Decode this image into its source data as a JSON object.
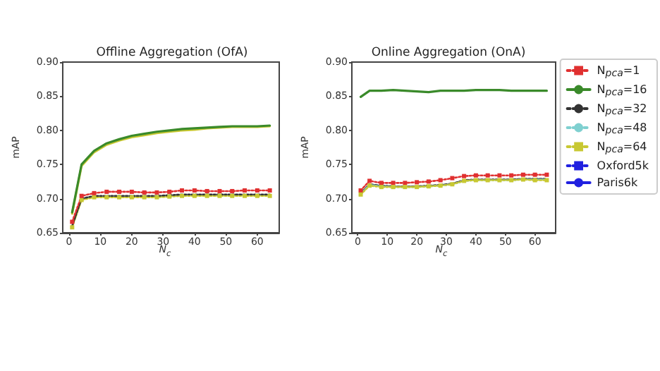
{
  "chart_data": [
    {
      "type": "line",
      "title": "Offline Aggregation (OfA)",
      "xlabel": "N$_{c}$",
      "ylabel": "mAP",
      "x": [
        1,
        4,
        8,
        12,
        16,
        20,
        24,
        28,
        32,
        36,
        40,
        44,
        48,
        52,
        56,
        60,
        64
      ],
      "xlim": [
        -2,
        67
      ],
      "xticks": [
        0,
        10,
        20,
        30,
        40,
        50,
        60
      ],
      "ylim": [
        0.65,
        0.9
      ],
      "yticks": [
        0.65,
        {
          "value": 0.7,
          "label": "0.70"
        },
        0.75,
        {
          "value": 0.8,
          "label": "0.80"
        },
        0.85,
        {
          "value": 0.9,
          "label": "0.90"
        }
      ],
      "grid": false,
      "legend": false,
      "series": [
        {
          "color": "#c8c832",
          "line_style": "solid",
          "marker": "none",
          "values": [
            0.678,
            0.748,
            0.768,
            0.779,
            0.785,
            0.79,
            0.793,
            0.796,
            0.798,
            0.8,
            0.801,
            0.803,
            0.804,
            0.805,
            0.805,
            0.805,
            0.806
          ]
        },
        {
          "color": "#3a8a2a",
          "line_style": "solid",
          "marker": "none",
          "values": [
            0.68,
            0.75,
            0.77,
            0.781,
            0.787,
            0.792,
            0.795,
            0.798,
            0.8,
            0.802,
            0.803,
            0.804,
            0.805,
            0.806,
            0.806,
            0.806,
            0.807
          ]
        },
        {
          "color": "#7fd0d0",
          "line_style": "dotted",
          "marker": "none",
          "values": [
            0.659,
            0.699,
            0.703,
            0.703,
            0.703,
            0.703,
            0.703,
            0.703,
            0.704,
            0.705,
            0.705,
            0.705,
            0.705,
            0.705,
            0.705,
            0.705,
            0.705
          ]
        },
        {
          "color": "#c8c832",
          "line_style": "dotted",
          "marker": "square",
          "values": [
            0.658,
            0.698,
            0.702,
            0.702,
            0.702,
            0.702,
            0.702,
            0.702,
            0.703,
            0.704,
            0.704,
            0.704,
            0.704,
            0.704,
            0.704,
            0.704,
            0.704
          ]
        },
        {
          "color": "#333333",
          "line_style": "dotted",
          "marker": "none",
          "values": [
            0.66,
            0.7,
            0.704,
            0.704,
            0.704,
            0.704,
            0.704,
            0.704,
            0.705,
            0.706,
            0.706,
            0.706,
            0.706,
            0.706,
            0.706,
            0.706,
            0.706
          ]
        },
        {
          "color": "#e03030",
          "line_style": "dotted",
          "marker": "square",
          "values": [
            0.666,
            0.704,
            0.708,
            0.71,
            0.71,
            0.71,
            0.709,
            0.709,
            0.71,
            0.712,
            0.712,
            0.711,
            0.711,
            0.711,
            0.712,
            0.712,
            0.712
          ]
        }
      ]
    },
    {
      "type": "line",
      "title": "Online Aggregation (OnA)",
      "xlabel": "N$_{c}$",
      "ylabel": "mAP",
      "x": [
        1,
        4,
        8,
        12,
        16,
        20,
        24,
        28,
        32,
        36,
        40,
        44,
        48,
        52,
        56,
        60,
        64
      ],
      "xlim": [
        -2,
        67
      ],
      "xticks": [
        0,
        10,
        20,
        30,
        40,
        50,
        60
      ],
      "ylim": [
        0.65,
        0.9
      ],
      "yticks": [
        0.65,
        {
          "value": 0.7,
          "label": "0.70"
        },
        0.75,
        {
          "value": 0.8,
          "label": "0.80"
        },
        0.85,
        {
          "value": 0.9,
          "label": "0.90"
        }
      ],
      "grid": false,
      "legend": "right",
      "series": [
        {
          "name": "N$_{pca}$=1",
          "color": "#e03030",
          "line_style": "dotted",
          "marker": "square",
          "values": [
            0.712,
            0.726,
            0.723,
            0.723,
            0.723,
            0.724,
            0.725,
            0.727,
            0.73,
            0.733,
            0.734,
            0.734,
            0.734,
            0.734,
            0.735,
            0.735,
            0.735
          ]
        },
        {
          "name": "N$_{pca}$=16",
          "color": "#3a8a2a",
          "line_style": "solid",
          "marker": "none",
          "values": [
            0.849,
            0.858,
            0.858,
            0.859,
            0.858,
            0.857,
            0.856,
            0.858,
            0.858,
            0.858,
            0.859,
            0.859,
            0.859,
            0.858,
            0.858,
            0.858,
            0.858
          ]
        },
        {
          "name": "N$_{pca}$=32",
          "color": "#333333",
          "line_style": "dotted",
          "marker": "none",
          "values": [
            0.708,
            0.721,
            0.719,
            0.718,
            0.718,
            0.718,
            0.719,
            0.72,
            0.722,
            0.727,
            0.728,
            0.728,
            0.728,
            0.728,
            0.729,
            0.729,
            0.729
          ]
        },
        {
          "name": "N$_{pca}$=48",
          "color": "#7fd0d0",
          "line_style": "dotted",
          "marker": "none",
          "values": [
            0.707,
            0.72,
            0.718,
            0.717,
            0.717,
            0.717,
            0.718,
            0.719,
            0.721,
            0.726,
            0.727,
            0.727,
            0.727,
            0.727,
            0.728,
            0.728,
            0.728
          ]
        },
        {
          "name": "N$_{pca}$=64",
          "color": "#c8c832",
          "line_style": "dotted",
          "marker": "square",
          "values": [
            0.706,
            0.719,
            0.717,
            0.717,
            0.717,
            0.717,
            0.718,
            0.719,
            0.721,
            0.726,
            0.727,
            0.727,
            0.727,
            0.727,
            0.728,
            0.727,
            0.727
          ]
        },
        {
          "name": "Oxford5k",
          "color": "#2020e0",
          "line_style": "dotted",
          "marker": "square",
          "values": [
            null,
            null,
            null,
            null,
            null,
            null,
            null,
            null,
            null,
            null,
            null,
            null,
            null,
            null,
            null,
            null,
            null
          ]
        },
        {
          "name": "Paris6k",
          "color": "#2020e0",
          "line_style": "solid",
          "marker": "none",
          "values": [
            null,
            null,
            null,
            null,
            null,
            null,
            null,
            null,
            null,
            null,
            null,
            null,
            null,
            null,
            null,
            null,
            null
          ]
        }
      ]
    }
  ]
}
